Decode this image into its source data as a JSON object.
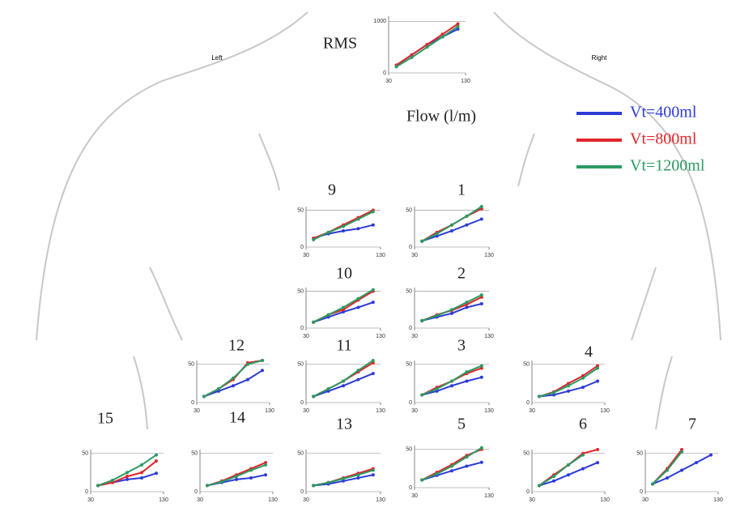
{
  "labels": {
    "left": "Left",
    "right": "Right"
  },
  "chart_data": [
    {
      "type": "line",
      "title": "RMS",
      "x_label": "Flow (l/m)",
      "xlim": [
        30,
        130
      ],
      "ylim": [
        0,
        1100
      ],
      "xticks": [
        30,
        130
      ],
      "yticks": [
        0,
        1000
      ],
      "x": [
        40,
        60,
        80,
        100,
        120
      ],
      "series": [
        {
          "name": "Vt=400ml",
          "color": "#2b3bd6",
          "values": [
            150,
            350,
            550,
            700,
            850
          ]
        },
        {
          "name": "Vt=800ml",
          "color": "#e0262a",
          "values": [
            150,
            350,
            550,
            750,
            950
          ]
        },
        {
          "name": "Vt=1200ml",
          "color": "#2a9a62",
          "values": [
            120,
            300,
            500,
            700,
            900
          ]
        }
      ]
    },
    {
      "type": "line",
      "title": "9",
      "xlim": [
        30,
        130
      ],
      "ylim": [
        0,
        55
      ],
      "xticks": [
        30,
        130
      ],
      "yticks": [
        0,
        50
      ],
      "x": [
        40,
        60,
        80,
        100,
        120
      ],
      "series": [
        {
          "color": "#2b3bd6",
          "values": [
            12,
            18,
            22,
            25,
            30
          ]
        },
        {
          "color": "#e0262a",
          "values": [
            12,
            20,
            30,
            40,
            50
          ]
        },
        {
          "color": "#2a9a62",
          "values": [
            10,
            20,
            28,
            38,
            48
          ]
        }
      ]
    },
    {
      "type": "line",
      "title": "1",
      "xlim": [
        30,
        130
      ],
      "ylim": [
        0,
        55
      ],
      "xticks": [
        30,
        130
      ],
      "yticks": [
        0,
        50
      ],
      "x": [
        40,
        60,
        80,
        100,
        120
      ],
      "series": [
        {
          "color": "#2b3bd6",
          "values": [
            8,
            15,
            22,
            30,
            38
          ]
        },
        {
          "color": "#e0262a",
          "values": [
            8,
            20,
            30,
            42,
            52
          ]
        },
        {
          "color": "#2a9a62",
          "values": [
            8,
            18,
            30,
            42,
            55
          ]
        }
      ]
    },
    {
      "type": "line",
      "title": "10",
      "xlim": [
        30,
        130
      ],
      "ylim": [
        0,
        55
      ],
      "xticks": [
        30,
        130
      ],
      "yticks": [
        0,
        50
      ],
      "x": [
        40,
        60,
        80,
        100,
        120
      ],
      "series": [
        {
          "color": "#2b3bd6",
          "values": [
            8,
            15,
            22,
            28,
            35
          ]
        },
        {
          "color": "#e0262a",
          "values": [
            8,
            18,
            25,
            38,
            50
          ]
        },
        {
          "color": "#2a9a62",
          "values": [
            8,
            18,
            28,
            40,
            52
          ]
        }
      ]
    },
    {
      "type": "line",
      "title": "2",
      "xlim": [
        30,
        130
      ],
      "ylim": [
        0,
        55
      ],
      "xticks": [
        30,
        130
      ],
      "yticks": [
        0,
        50
      ],
      "x": [
        40,
        60,
        80,
        100,
        120
      ],
      "series": [
        {
          "color": "#2b3bd6",
          "values": [
            10,
            15,
            20,
            28,
            33
          ]
        },
        {
          "color": "#e0262a",
          "values": [
            10,
            18,
            24,
            32,
            42
          ]
        },
        {
          "color": "#2a9a62",
          "values": [
            10,
            17,
            25,
            35,
            45
          ]
        }
      ]
    },
    {
      "type": "line",
      "title": "12",
      "xlim": [
        30,
        130
      ],
      "ylim": [
        0,
        55
      ],
      "xticks": [
        30,
        130
      ],
      "yticks": [
        0,
        50
      ],
      "x": [
        40,
        60,
        80,
        100,
        120
      ],
      "series": [
        {
          "color": "#2b3bd6",
          "values": [
            8,
            15,
            22,
            30,
            42
          ]
        },
        {
          "color": "#e0262a",
          "values": [
            8,
            18,
            30,
            52,
            55
          ]
        },
        {
          "color": "#2a9a62",
          "values": [
            8,
            18,
            32,
            50,
            55
          ]
        }
      ]
    },
    {
      "type": "line",
      "title": "11",
      "xlim": [
        30,
        130
      ],
      "ylim": [
        0,
        55
      ],
      "xticks": [
        30,
        130
      ],
      "yticks": [
        0,
        50
      ],
      "x": [
        40,
        60,
        80,
        100,
        120
      ],
      "series": [
        {
          "color": "#2b3bd6",
          "values": [
            8,
            15,
            22,
            30,
            38
          ]
        },
        {
          "color": "#e0262a",
          "values": [
            8,
            18,
            28,
            40,
            52
          ]
        },
        {
          "color": "#2a9a62",
          "values": [
            8,
            18,
            28,
            42,
            55
          ]
        }
      ]
    },
    {
      "type": "line",
      "title": "3",
      "xlim": [
        30,
        130
      ],
      "ylim": [
        0,
        55
      ],
      "xticks": [
        30,
        130
      ],
      "yticks": [
        0,
        50
      ],
      "x": [
        40,
        60,
        80,
        100,
        120
      ],
      "series": [
        {
          "color": "#2b3bd6",
          "values": [
            10,
            15,
            22,
            28,
            33
          ]
        },
        {
          "color": "#e0262a",
          "values": [
            10,
            20,
            28,
            38,
            45
          ]
        },
        {
          "color": "#2a9a62",
          "values": [
            10,
            18,
            28,
            40,
            48
          ]
        }
      ]
    },
    {
      "type": "line",
      "title": "4",
      "xlim": [
        30,
        130
      ],
      "ylim": [
        0,
        55
      ],
      "xticks": [
        30,
        130
      ],
      "yticks": [
        0,
        50
      ],
      "x": [
        40,
        60,
        80,
        100,
        120
      ],
      "series": [
        {
          "color": "#2b3bd6",
          "values": [
            8,
            10,
            15,
            20,
            28
          ]
        },
        {
          "color": "#e0262a",
          "values": [
            8,
            14,
            25,
            35,
            48
          ]
        },
        {
          "color": "#2a9a62",
          "values": [
            8,
            13,
            22,
            32,
            45
          ]
        }
      ]
    },
    {
      "type": "line",
      "title": "15",
      "xlim": [
        30,
        130
      ],
      "ylim": [
        0,
        55
      ],
      "xticks": [
        30,
        130
      ],
      "yticks": [
        0,
        50
      ],
      "x": [
        40,
        60,
        80,
        100,
        120
      ],
      "series": [
        {
          "color": "#2b3bd6",
          "values": [
            8,
            12,
            16,
            18,
            24
          ]
        },
        {
          "color": "#e0262a",
          "values": [
            8,
            12,
            20,
            25,
            40
          ]
        },
        {
          "color": "#2a9a62",
          "values": [
            8,
            15,
            25,
            35,
            48
          ]
        }
      ]
    },
    {
      "type": "line",
      "title": "14",
      "xlim": [
        30,
        130
      ],
      "ylim": [
        0,
        55
      ],
      "xticks": [
        30,
        130
      ],
      "yticks": [
        0,
        50
      ],
      "x": [
        40,
        60,
        80,
        100,
        120
      ],
      "series": [
        {
          "color": "#2b3bd6",
          "values": [
            8,
            12,
            16,
            18,
            22
          ]
        },
        {
          "color": "#e0262a",
          "values": [
            8,
            14,
            22,
            30,
            38
          ]
        },
        {
          "color": "#2a9a62",
          "values": [
            8,
            13,
            20,
            28,
            35
          ]
        }
      ]
    },
    {
      "type": "line",
      "title": "13",
      "xlim": [
        30,
        130
      ],
      "ylim": [
        0,
        55
      ],
      "xticks": [
        30,
        130
      ],
      "yticks": [
        0,
        50
      ],
      "x": [
        40,
        60,
        80,
        100,
        120
      ],
      "series": [
        {
          "color": "#2b3bd6",
          "values": [
            8,
            10,
            14,
            18,
            22
          ]
        },
        {
          "color": "#e0262a",
          "values": [
            8,
            12,
            18,
            24,
            30
          ]
        },
        {
          "color": "#2a9a62",
          "values": [
            8,
            12,
            17,
            22,
            28
          ]
        }
      ]
    },
    {
      "type": "line",
      "title": "5",
      "xlim": [
        30,
        130
      ],
      "ylim": [
        0,
        55
      ],
      "xticks": [
        30,
        130
      ],
      "yticks": [
        0,
        50
      ],
      "x": [
        40,
        60,
        80,
        100,
        120
      ],
      "series": [
        {
          "color": "#2b3bd6",
          "values": [
            10,
            16,
            22,
            28,
            33
          ]
        },
        {
          "color": "#e0262a",
          "values": [
            10,
            20,
            30,
            42,
            50
          ]
        },
        {
          "color": "#2a9a62",
          "values": [
            10,
            18,
            28,
            40,
            52
          ]
        }
      ]
    },
    {
      "type": "line",
      "title": "6",
      "xlim": [
        30,
        130
      ],
      "ylim": [
        0,
        55
      ],
      "xticks": [
        30,
        130
      ],
      "yticks": [
        0,
        50
      ],
      "x": [
        40,
        60,
        80,
        100,
        120
      ],
      "series": [
        {
          "color": "#2b3bd6",
          "values": [
            8,
            14,
            22,
            30,
            38
          ]
        },
        {
          "color": "#e0262a",
          "values": [
            8,
            22,
            35,
            50,
            55
          ]
        },
        {
          "color": "#2a9a62",
          "values": [
            8,
            20,
            35,
            48,
            null
          ]
        }
      ]
    },
    {
      "type": "line",
      "title": "7",
      "xlim": [
        30,
        130
      ],
      "ylim": [
        0,
        55
      ],
      "xticks": [
        30,
        130
      ],
      "yticks": [
        0,
        50
      ],
      "x": [
        40,
        60,
        80,
        100,
        120
      ],
      "series": [
        {
          "color": "#2b3bd6",
          "values": [
            10,
            18,
            28,
            38,
            48
          ]
        },
        {
          "color": "#e0262a",
          "values": [
            10,
            30,
            55,
            null,
            null
          ]
        },
        {
          "color": "#2a9a62",
          "values": [
            10,
            28,
            52,
            null,
            null
          ]
        }
      ]
    }
  ]
}
